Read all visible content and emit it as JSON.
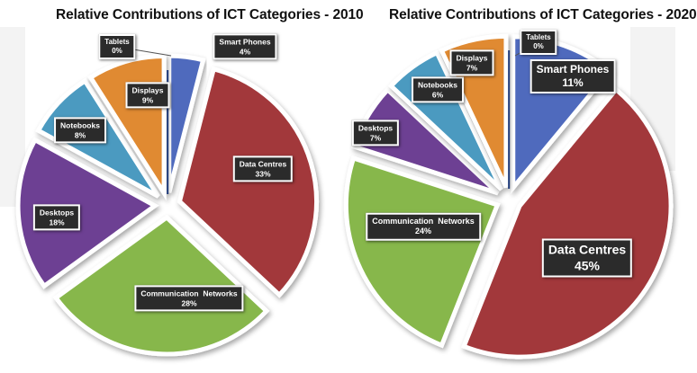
{
  "chart_data": [
    {
      "type": "pie",
      "title": "Relative Contributions of ICT Categories - 2010",
      "exploded": true,
      "start": "top, clockwise",
      "slices": [
        {
          "label": "Smart Phones",
          "value": 4,
          "value_label": "4%",
          "color": "#4f6bbd"
        },
        {
          "label": "Data Centres",
          "value": 33,
          "value_label": "33%",
          "color": "#a2373a"
        },
        {
          "label": "Communication  Networks",
          "value": 28,
          "value_label": "28%",
          "color": "#87b74b"
        },
        {
          "label": "Desktops",
          "value": 18,
          "value_label": "18%",
          "color": "#6d3f93"
        },
        {
          "label": "Notebooks",
          "value": 8,
          "value_label": "8%",
          "color": "#4b9ac0"
        },
        {
          "label": "Displays",
          "value": 9,
          "value_label": "9%",
          "color": "#e08a30"
        },
        {
          "label": "Tablets",
          "value": 0,
          "value_label": "0%",
          "color": "#1f3a7a"
        }
      ]
    },
    {
      "type": "pie",
      "title": "Relative Contributions of ICT Categories - 2020",
      "exploded": true,
      "start": "top, clockwise",
      "slices": [
        {
          "label": "Smart Phones",
          "value": 11,
          "value_label": "11%",
          "color": "#4f6bbd"
        },
        {
          "label": "Data Centres",
          "value": 45,
          "value_label": "45%",
          "color": "#a2373a"
        },
        {
          "label": "Communication  Networks",
          "value": 24,
          "value_label": "24%",
          "color": "#87b74b"
        },
        {
          "label": "Desktops",
          "value": 7,
          "value_label": "7%",
          "color": "#6d3f93"
        },
        {
          "label": "Notebooks",
          "value": 6,
          "value_label": "6%",
          "color": "#4b9ac0"
        },
        {
          "label": "Displays",
          "value": 7,
          "value_label": "7%",
          "color": "#e08a30"
        },
        {
          "label": "Tablets",
          "value": 0,
          "value_label": "0%",
          "color": "#1f3a7a"
        }
      ]
    }
  ]
}
